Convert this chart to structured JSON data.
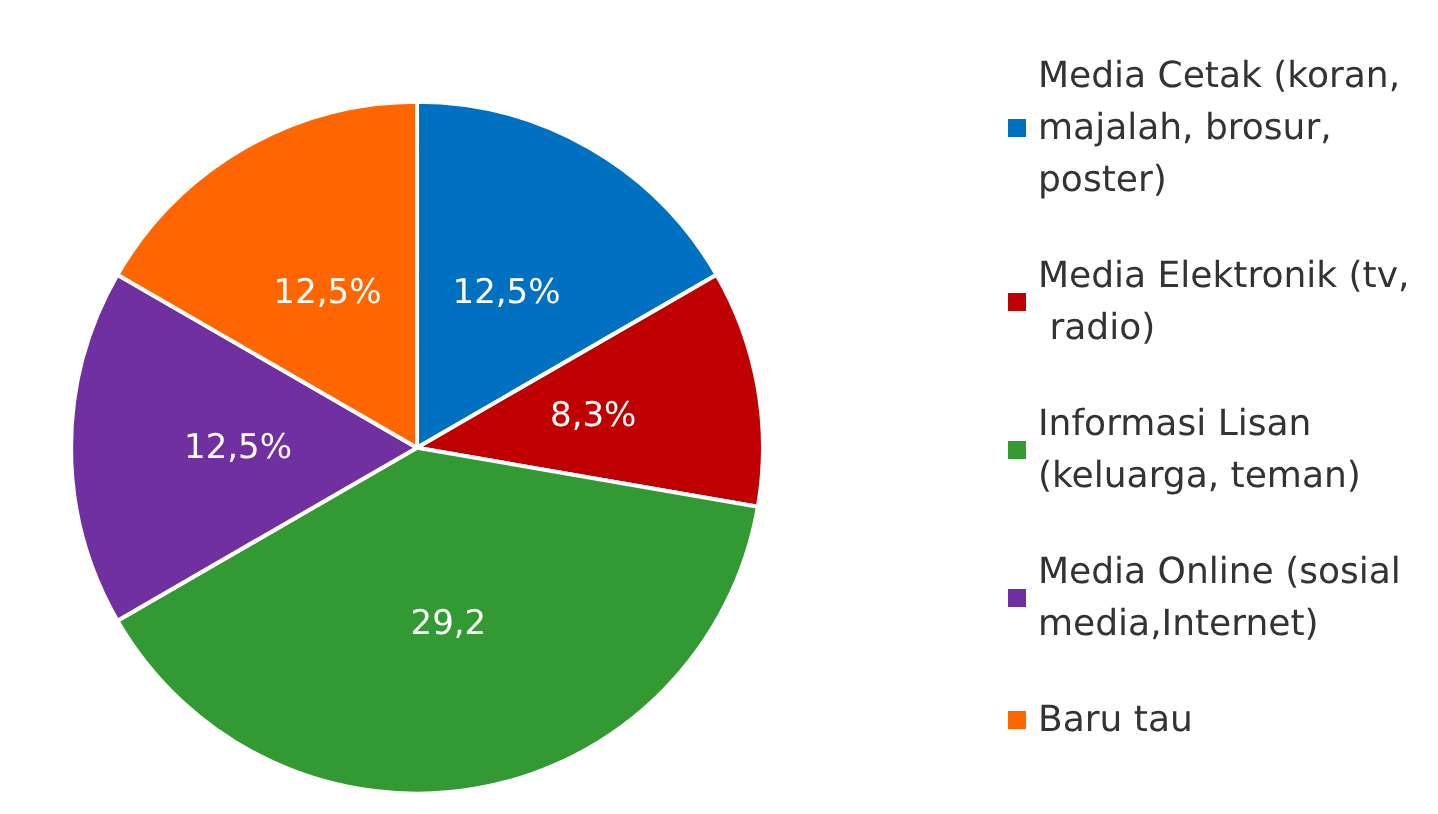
{
  "chart_data": {
    "type": "pie",
    "categories": [
      "Media Cetak (koran, majalah, brosur,poster)",
      "Media Elektronik (tv, radio)",
      "Informasi Lisan (keluarga, teman)",
      "Media Online (sosial media,Internet)",
      "Baru tau"
    ],
    "values": [
      12.5,
      8.3,
      29.2,
      12.5,
      12.5
    ],
    "value_labels": [
      "12,5%",
      "8,3%",
      "29,2",
      "12,5%",
      "12,5%"
    ],
    "colors": [
      "#0070c0",
      "#c00000",
      "#339933",
      "#7030a0",
      "#ff6600"
    ],
    "legend": "right"
  }
}
